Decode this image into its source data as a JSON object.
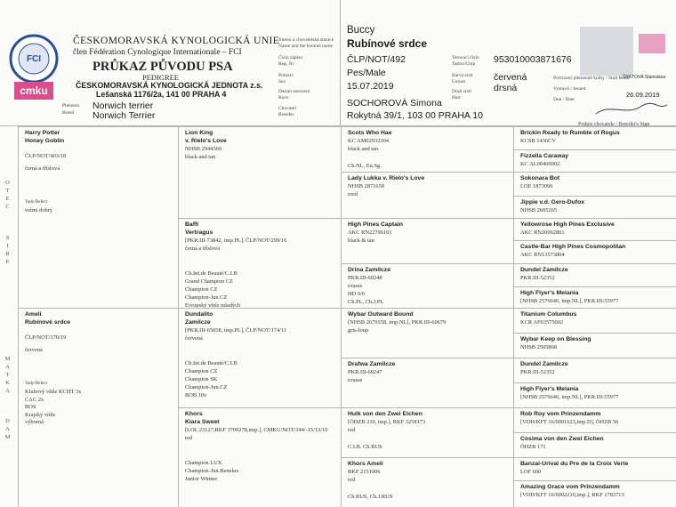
{
  "header": {
    "org": "ČESKOMORAVSKÁ KYNOLOGICKÁ UNIE",
    "fci_member": "člen Fédération Cynologique Internationale – FCI",
    "doc_title": "PRŮKAZ PŮVODU PSA",
    "doc_subtitle": "PEDIGREE",
    "club": "ČESKOMORAVSKÁ KYNOLOGICKÁ JEDNOTA z.s.",
    "address": "Lešanská 1176/2a, 141 00 PRAHA 4",
    "logo_fci": "FCI",
    "logo_cmku": "cmku",
    "breed_label": [
      "Plemeno",
      "Breed"
    ],
    "breed": [
      "Norwich terrier",
      "Norwich Terrier"
    ],
    "name_label": [
      "Jméno a chovatelská stanice",
      "Name and the Kennel name"
    ],
    "name": [
      "Buccy",
      "Rubínové srdce"
    ],
    "reg_label": [
      "Číslo zápisu",
      "Reg. Nr"
    ],
    "reg": "ČLP/NOT/492",
    "sex_label": [
      "Pohlaví",
      "Sex"
    ],
    "sex": "Pes/Male",
    "born_label": [
      "Datum narození",
      "Born"
    ],
    "born": "15.07.2019",
    "breeder_label": [
      "Chovatel",
      "Breeder"
    ],
    "breeder": [
      "SOCHOROVÁ Simona",
      "Rokytná 39/1, 103 00 PRAHA 10"
    ],
    "chip_label": [
      "Tetovací číslo",
      "Tattoo/Chip"
    ],
    "chip": "953010003871676",
    "colour_label": [
      "Barva srsti",
      "Colour"
    ],
    "colour": "červená",
    "hair_label": [
      "Druh srsti",
      "Hair"
    ],
    "hair": "drsná",
    "studbook_label": "Potvrzení plemenné knihy / Stud Book",
    "issued_label": "Vystavil / Issued",
    "date_label": "Dne / Date",
    "issued_by": "ŠPÁTOVÁ Stanislava",
    "date": "26.09.2019",
    "breeder_sign_label": "Podpis chovatele / Breeder's Sign"
  },
  "pedigree": {
    "letters": {
      "sire_cz": "OTEC",
      "sire_en": "SIRE",
      "dam_cz": "MATKA",
      "dam_en": "DAM"
    },
    "gen1": [
      {
        "name": [
          "Harry Potter",
          "Honey Goblin"
        ],
        "info": [
          "ČLP/NOT/403/18",
          "černá a tříslová"
        ],
        "defects_label": "Vady/Defect",
        "defects": [
          "velmi dobrý"
        ]
      },
      {
        "name": [
          "Ameli",
          "Rubínové srdce"
        ],
        "info": [
          "ČLP/NOT/370/19",
          "červená"
        ],
        "defects_label": "Vady/Defect",
        "defects": [
          "Klubový vítěz KCHT 3x",
          "CAC 2x",
          "BOS",
          "Krajský vítěz",
          "výborná"
        ]
      }
    ],
    "gen2": [
      {
        "name": [
          "Lion King",
          "v. Rielo's Love"
        ],
        "info": [
          "NHSB 2944369",
          "black and tan"
        ],
        "titles": []
      },
      {
        "name": [
          "Baffi",
          "Vertragus"
        ],
        "info": [
          "[PKR.III-73842, imp.PL], ČLP/NOT/299/16",
          "černá a tříslová"
        ],
        "titles": [
          "Ch.Int.de Beauté/C.I.B",
          "Grand Champion CZ",
          "Champion CZ",
          "Champion-Jun.CZ",
          "Evropský vítěz mladých"
        ]
      },
      {
        "name": [
          "Dundalito",
          "Zamilcze"
        ],
        "info": [
          "[PKR.III-65058, imp.PL], ČLP/NOT/174/11",
          "červená"
        ],
        "titles": [
          "Ch.Int.de Beauté/C.I.B",
          "Champion CZ",
          "Champion SK",
          "Champion-Jun.CZ",
          "BOB 10x"
        ]
      },
      {
        "name": [
          "Khors",
          "Kiara Sweet"
        ],
        "info": [
          "[LOL 23127,RKF 3709278,imp.], CMKU/NOT/344/-15/13/10",
          "red"
        ],
        "titles": [
          "Champion LUX",
          "Champion-Jun.Benelux",
          "Junior Winner"
        ]
      }
    ],
    "gen3": [
      {
        "name": [
          "Scots Who Hae"
        ],
        "info": [
          "KC AM02932304",
          "black and tan"
        ],
        "titles": [
          "Ch.NL, Eu.Sg."
        ]
      },
      {
        "name": [
          "Lady Lukka v. Rielo's Love"
        ],
        "info": [
          "NHSB 2871650",
          "reed"
        ],
        "titles": []
      },
      {
        "name": [
          "High Pines Captain"
        ],
        "info": [
          "AKC RN22796101",
          "black & tan"
        ],
        "titles": []
      },
      {
        "name": [
          "Drina Zamilcze"
        ],
        "info": [
          "PKR.III-60248",
          "rousse",
          "HD 0/0",
          "Ch.PL, Ch.J.PL"
        ],
        "titles": []
      },
      {
        "name": [
          "Wybar Outward Bound"
        ],
        "info": [
          "[NHSB 2679358, imp.NL], PKR.III-60679",
          "gris-loup"
        ],
        "titles": []
      },
      {
        "name": [
          "Drafwa Zamilcze"
        ],
        "info": [
          "PKR.III-60247",
          "rousse"
        ],
        "titles": []
      },
      {
        "name": [
          "Hulk von den Zwei Eichen"
        ],
        "info": [
          "[ÖHZB 210, imp.], RKF 3258173",
          "red"
        ],
        "titles": [
          "C.I.B. Ch.RUS"
        ]
      },
      {
        "name": [
          "Khors Ameli"
        ],
        "info": [
          "RKF 2151006",
          "red"
        ],
        "titles": [
          "Ch.RUS, Ch.J.RUS"
        ]
      }
    ],
    "gen4": [
      {
        "name": [
          "Brickin Ready to Rumble of Rogus"
        ],
        "info": [
          "KCSB 1436CV"
        ]
      },
      {
        "name": [
          "Fizzella Caraway"
        ],
        "info": [
          "KC AL00469002"
        ]
      },
      {
        "name": [
          "Sokonara Bot"
        ],
        "info": [
          "LOE 1873096"
        ]
      },
      {
        "name": [
          "Jippie v.d. Gero-Dufox"
        ],
        "info": [
          "NHSB 2605265"
        ]
      },
      {
        "name": [
          "Yellowrose High Pines Exclusive"
        ],
        "info": [
          "AKC RN20062801"
        ]
      },
      {
        "name": [
          "Castle-Bar High Pines Cosmopolitan"
        ],
        "info": [
          "AKC RN13573804"
        ]
      },
      {
        "name": [
          "Dundel Zamilcze"
        ],
        "info": [
          "PKR.III-52352"
        ]
      },
      {
        "name": [
          "High Flyer's Melania"
        ],
        "info": [
          "[NHSB 2576646, imp.NL], PKR.III-55977"
        ]
      },
      {
        "name": [
          "Titanium Columbus"
        ],
        "info": [
          "KCR AF03575002"
        ]
      },
      {
        "name": [
          "Wybar Keep on Blessing"
        ],
        "info": [
          "NHSB 2505868"
        ]
      },
      {
        "name": [
          "Dundel Zamilcze"
        ],
        "info": [
          "PKR.III-52352"
        ]
      },
      {
        "name": [
          "High Flyer's Melania"
        ],
        "info": [
          "[NHSB 2576646, imp.NL], PKR.III-55977"
        ]
      },
      {
        "name": [
          "Rob Roy vom Prinzendamm"
        ],
        "info": [
          "[VDH/KFT 16/0001623,imp.D], ÖHZB 56"
        ]
      },
      {
        "name": [
          "Cosima von den Zwei Eichen"
        ],
        "info": [
          "ÖHZB 171"
        ]
      },
      {
        "name": [
          "Banzai-Urival du Pre de la Croix Verte"
        ],
        "info": [
          "LOF 600"
        ]
      },
      {
        "name": [
          "Amazing Grace vom Prinzendamm"
        ],
        "info": [
          "[VDH/KFT 16/0002210,imp.], RKF 1783713"
        ]
      }
    ]
  }
}
